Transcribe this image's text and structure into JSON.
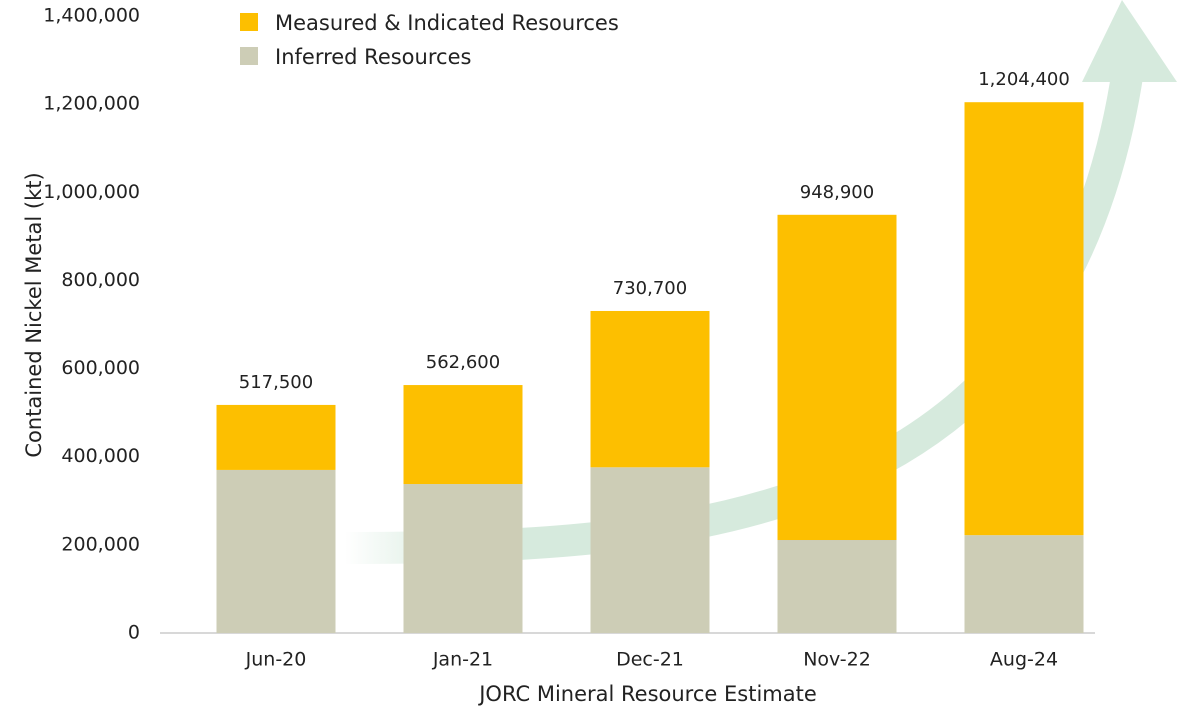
{
  "chart_data": {
    "type": "stacked_bar",
    "x_label": "JORC  Mineral Resource Estimate",
    "y_label": "Contained Nickel Metal (kt)",
    "categories": [
      "Jun-20",
      "Jan-21",
      "Dec-21",
      "Nov-22",
      "Aug-24"
    ],
    "series": [
      {
        "name": "Inferred Resources",
        "color": "#cdcdb6",
        "values": [
          370000,
          338000,
          376000,
          211000,
          222000
        ]
      },
      {
        "name": "Measured & Indicated Resources",
        "color": "#fdbf00",
        "values": [
          147500,
          224600,
          354700,
          737900,
          982400
        ]
      }
    ],
    "totals": [
      517500,
      562600,
      730700,
      948900,
      1204400
    ],
    "total_labels": [
      "517,500",
      "562,600",
      "730,700",
      "948,900",
      "1,204,400"
    ],
    "ylim": [
      0,
      1400000
    ],
    "yticks": [
      0,
      {
        "value": 200000,
        "label": "200,000"
      },
      {
        "value": 400000,
        "label": "400,000"
      },
      {
        "value": 600000,
        "label": "600,000"
      },
      {
        "value": 800000,
        "label": "800,000"
      },
      {
        "value": 1000000,
        "label": "1,000,000"
      },
      {
        "value": 1200000,
        "label": "1,200,000"
      },
      {
        "value": 1400000,
        "label": "1,400,000"
      }
    ]
  }
}
